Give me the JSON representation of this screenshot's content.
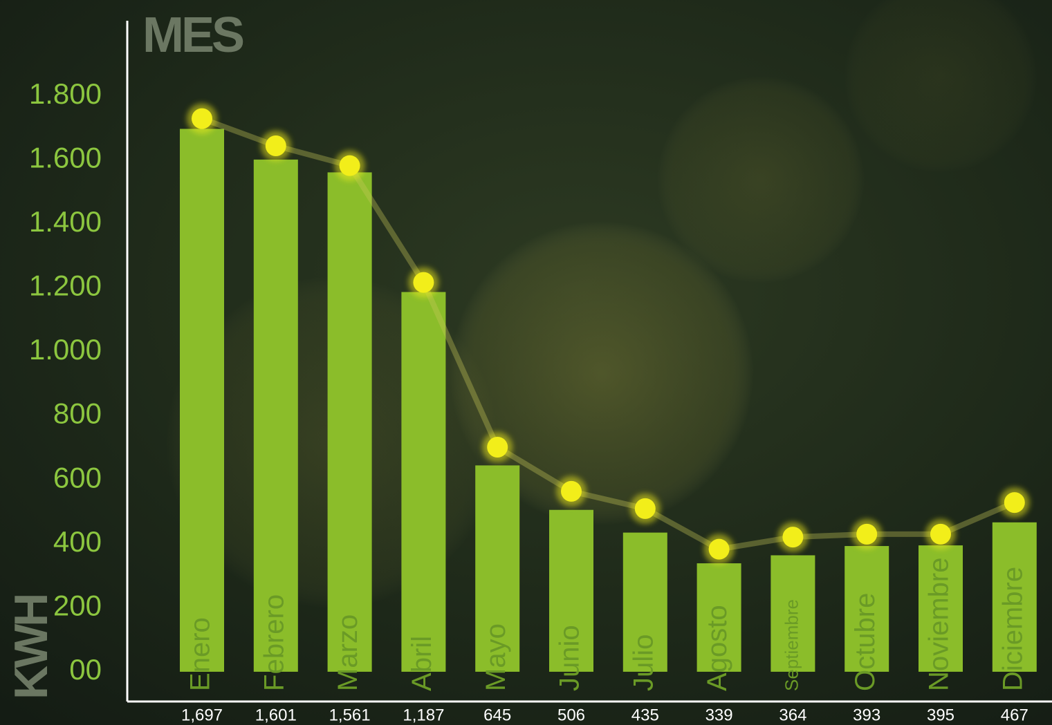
{
  "chart_data": {
    "type": "bar",
    "title": "MES",
    "y_label": "KWH",
    "categories": [
      "Enero",
      "Febrero",
      "Marzo",
      "Abril",
      "Mayo",
      "Junio",
      "Julio",
      "Agosto",
      "Septiembre",
      "Octubre",
      "Noviembre",
      "Diciembre"
    ],
    "series": [
      {
        "color": "#8bbd2a",
        "values": [
          1697,
          1601,
          1561,
          1187,
          645,
          506,
          435,
          339,
          364,
          393,
          395,
          467
        ],
        "value_labels": [
          "1,697",
          "1,601",
          "1,561",
          "1,187",
          "645",
          "506",
          "435",
          "339",
          "364",
          "393",
          "395",
          "467"
        ]
      },
      {
        "color": "#f2ee1a",
        "values": [
          1729,
          1644,
          1582,
          1217,
          702,
          564,
          510,
          383,
          421,
          430,
          430,
          529
        ]
      }
    ],
    "ylim": [
      -93,
      2035
    ],
    "yticks": [
      {
        "value": 0,
        "label": "00"
      },
      200,
      400,
      600,
      800,
      {
        "value": 1000,
        "label": "1.000"
      },
      {
        "value": 1200,
        "label": "1.200"
      },
      {
        "value": 1400,
        "label": "1.400"
      },
      {
        "value": 1600,
        "label": "1.600"
      },
      {
        "value": 1800,
        "label": "1.800"
      }
    ],
    "grid": false
  }
}
